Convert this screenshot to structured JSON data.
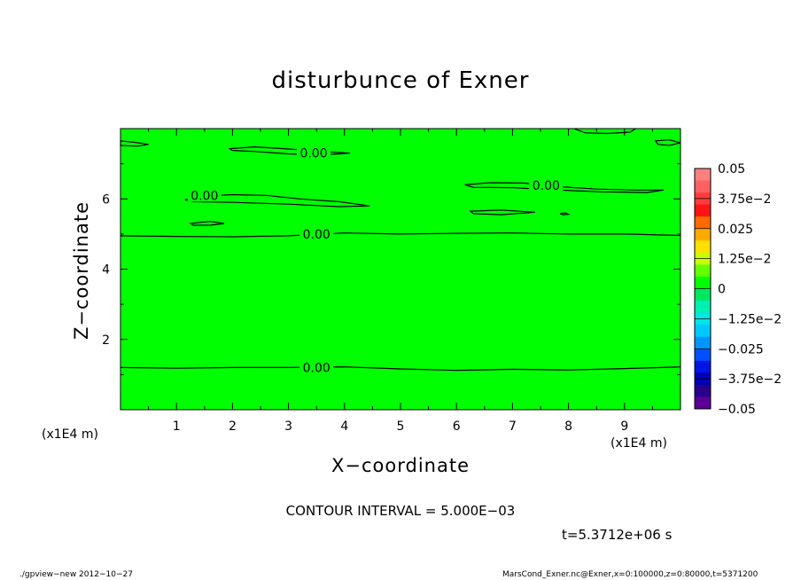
{
  "chart_data": {
    "type": "heatmap",
    "title": "disturbunce of Exner",
    "xlabel": "X−coordinate",
    "ylabel": "Z−coordinate",
    "x_units": "(x1E4 m)",
    "y_units": "(x1E4 m)",
    "xlim": [
      0,
      10
    ],
    "ylim": [
      0,
      8
    ],
    "x_ticks": [
      1,
      2,
      3,
      4,
      5,
      6,
      7,
      8,
      9
    ],
    "y_ticks": [
      2,
      4,
      6
    ],
    "field_color": "#00ff00",
    "contour_interval": "CONTOUR INTERVAL = 5.000E−03",
    "contours": [
      {
        "label": "0.00",
        "label_pos": [
          3.5,
          1.2
        ],
        "points": [
          [
            0,
            1.2
          ],
          [
            1,
            1.18
          ],
          [
            2,
            1.2
          ],
          [
            3,
            1.2
          ],
          [
            4,
            1.22
          ],
          [
            5,
            1.16
          ],
          [
            6,
            1.12
          ],
          [
            7,
            1.15
          ],
          [
            8,
            1.13
          ],
          [
            9,
            1.17
          ],
          [
            10,
            1.22
          ]
        ]
      },
      {
        "label": "0.00",
        "label_pos": [
          3.5,
          5.0
        ],
        "points": [
          [
            0,
            4.95
          ],
          [
            1,
            4.93
          ],
          [
            2,
            4.92
          ],
          [
            3,
            4.95
          ],
          [
            4,
            5.03
          ],
          [
            5,
            5.0
          ],
          [
            6,
            5.02
          ],
          [
            7,
            5.03
          ],
          [
            8,
            5.0
          ],
          [
            9,
            5.0
          ],
          [
            10,
            4.96
          ]
        ]
      },
      {
        "label": "0.00",
        "label_pos": [
          1.5,
          6.1
        ],
        "closed": true,
        "points": [
          [
            1.15,
            5.97
          ],
          [
            1.5,
            6.08
          ],
          [
            2,
            6.12
          ],
          [
            2.6,
            6.1
          ],
          [
            3.2,
            6.0
          ],
          [
            3.9,
            5.92
          ],
          [
            4.45,
            5.8
          ],
          [
            3.9,
            5.78
          ],
          [
            3,
            5.85
          ],
          [
            2,
            5.9
          ],
          [
            1.3,
            5.92
          ]
        ]
      },
      {
        "label": "0.00",
        "label_pos": [
          3.45,
          7.3
        ],
        "closed": true,
        "points": [
          [
            1.95,
            7.43
          ],
          [
            2.4,
            7.48
          ],
          [
            3.0,
            7.42
          ],
          [
            3.6,
            7.35
          ],
          [
            4.1,
            7.3
          ],
          [
            3.6,
            7.25
          ],
          [
            3.0,
            7.28
          ],
          [
            2.4,
            7.35
          ],
          [
            2.0,
            7.38
          ]
        ]
      },
      {
        "label": "0.00",
        "label_pos": [
          7.6,
          6.38
        ],
        "closed": true,
        "points": [
          [
            6.15,
            6.4
          ],
          [
            6.6,
            6.46
          ],
          [
            7.2,
            6.45
          ],
          [
            7.8,
            6.35
          ],
          [
            8.5,
            6.28
          ],
          [
            9.2,
            6.25
          ],
          [
            9.7,
            6.25
          ],
          [
            9.4,
            6.18
          ],
          [
            8.6,
            6.2
          ],
          [
            7.8,
            6.25
          ],
          [
            7.0,
            6.32
          ],
          [
            6.3,
            6.33
          ]
        ]
      },
      {
        "label": "",
        "closed": true,
        "points": [
          [
            1.25,
            5.3
          ],
          [
            1.6,
            5.36
          ],
          [
            1.85,
            5.3
          ],
          [
            1.6,
            5.25
          ],
          [
            1.3,
            5.25
          ]
        ]
      },
      {
        "label": "",
        "closed": true,
        "points": [
          [
            6.25,
            5.65
          ],
          [
            6.8,
            5.68
          ],
          [
            7.4,
            5.62
          ],
          [
            6.8,
            5.55
          ],
          [
            6.3,
            5.58
          ]
        ]
      },
      {
        "label": "",
        "closed": true,
        "points": [
          [
            7.85,
            5.58
          ],
          [
            7.95,
            5.6
          ],
          [
            8.0,
            5.56
          ],
          [
            7.9,
            5.55
          ]
        ]
      },
      {
        "label": "",
        "closed": true,
        "points": [
          [
            0.0,
            7.65
          ],
          [
            0.3,
            7.6
          ],
          [
            0.5,
            7.55
          ],
          [
            0.3,
            7.5
          ],
          [
            0.0,
            7.52
          ]
        ]
      },
      {
        "label": "",
        "closed": true,
        "points": [
          [
            9.55,
            7.65
          ],
          [
            9.8,
            7.68
          ],
          [
            10,
            7.6
          ],
          [
            9.8,
            7.52
          ],
          [
            9.6,
            7.55
          ]
        ]
      },
      {
        "label": "",
        "closed": false,
        "points": [
          [
            8.1,
            8.0
          ],
          [
            8.3,
            7.88
          ],
          [
            8.7,
            7.86
          ],
          [
            9.1,
            7.9
          ],
          [
            9.2,
            8.0
          ]
        ]
      }
    ],
    "colorbar": {
      "labels": [
        "0.05",
        "3.75e−2",
        "0.025",
        "1.25e−2",
        "0",
        "−1.25e−2",
        "−0.025",
        "−3.75e−2",
        "−0.05"
      ],
      "colors": [
        "#ff8080",
        "#ff6060",
        "#ff3c3c",
        "#ff1414",
        "#ff6a00",
        "#ffaa00",
        "#ffe000",
        "#c8ff00",
        "#64ff00",
        "#00ff00",
        "#00e860",
        "#00f0b4",
        "#00e6e6",
        "#00c8ff",
        "#0096ff",
        "#0050ff",
        "#0014e6",
        "#0000b4",
        "#28008c",
        "#5a0096"
      ]
    }
  },
  "time_label": "t=5.3712e+06 s",
  "footer_left": "./gpview−new   2012−10−27",
  "footer_right": "MarsCond_Exner.nc@Exner,x=0:100000,z=0:80000,t=5371200"
}
